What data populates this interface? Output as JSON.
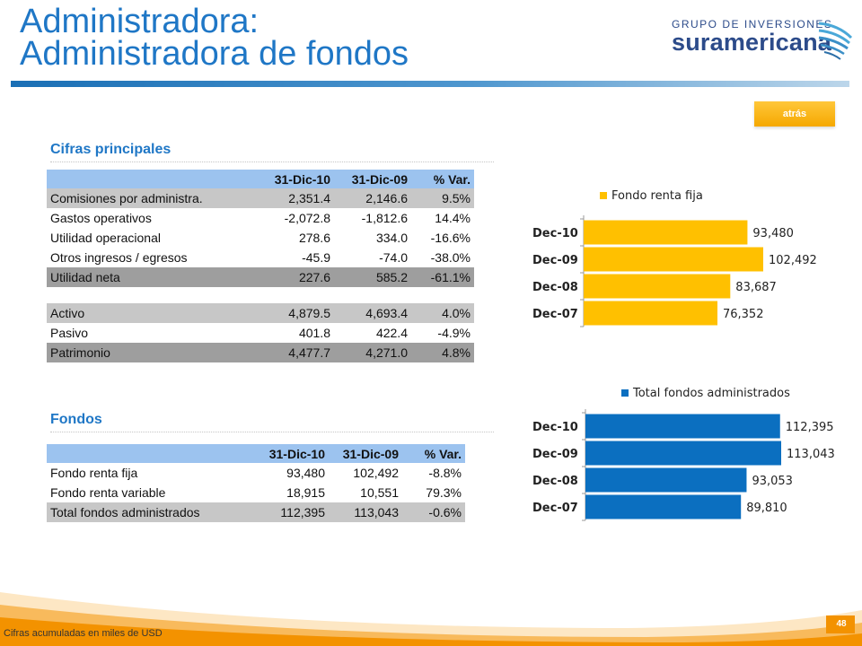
{
  "header": {
    "title_line1": "Administradora:",
    "title_line2": "Administradora de fondos",
    "logo_top": "GRUPO DE INVERSIONES",
    "logo_main": "suramericana"
  },
  "back_button": {
    "label": "atrás"
  },
  "cifras": {
    "section_title": "Cifras principales",
    "columns": [
      "31-Dic-10",
      "31-Dic-09",
      "% Var."
    ],
    "rows": [
      {
        "label": "Comisiones por administra.",
        "v1": "2,351.4",
        "v2": "2,146.6",
        "var": "9.5%",
        "style": "grey"
      },
      {
        "label": "Gastos operativos",
        "v1": "-2,072.8",
        "v2": "-1,812.6",
        "var": "14.4%",
        "style": "white"
      },
      {
        "label": "Utilidad operacional",
        "v1": "278.6",
        "v2": "334.0",
        "var": "-16.6%",
        "style": "white"
      },
      {
        "label": "Otros ingresos / egresos",
        "v1": "-45.9",
        "v2": "-74.0",
        "var": "-38.0%",
        "style": "white"
      },
      {
        "label": "Utilidad neta",
        "v1": "227.6",
        "v2": "585.2",
        "var": "-61.1%",
        "style": "dark"
      }
    ],
    "balance_rows": [
      {
        "label": "Activo",
        "v1": "4,879.5",
        "v2": "4,693.4",
        "var": "4.0%",
        "style": "grey"
      },
      {
        "label": "Pasivo",
        "v1": "401.8",
        "v2": "422.4",
        "var": "-4.9%",
        "style": "white"
      },
      {
        "label": "Patrimonio",
        "v1": "4,477.7",
        "v2": "4,271.0",
        "var": "4.8%",
        "style": "dark"
      }
    ]
  },
  "fondos": {
    "section_title": "Fondos",
    "columns": [
      "31-Dic-10",
      "31-Dic-09",
      "% Var."
    ],
    "rows": [
      {
        "label": "Fondo renta fija",
        "v1": "93,480",
        "v2": "102,492",
        "var": "-8.8%",
        "style": "white"
      },
      {
        "label": "Fondo renta variable",
        "v1": "18,915",
        "v2": "10,551",
        "var": "79.3%",
        "style": "white"
      },
      {
        "label": "Total fondos administrados",
        "v1": "112,395",
        "v2": "113,043",
        "var": "-0.6%",
        "style": "grey"
      }
    ]
  },
  "chart_data": [
    {
      "type": "bar",
      "orientation": "horizontal",
      "categories": [
        "Dec-10",
        "Dec-09",
        "Dec-08",
        "Dec-07"
      ],
      "series": [
        {
          "name": "Fondo renta fija",
          "values": [
            93480,
            102492,
            83687,
            76352
          ],
          "labels": [
            "93,480",
            "102,492",
            "83,687",
            "76,352"
          ]
        }
      ],
      "color": "#ffc000",
      "legend": "top",
      "grid": false
    },
    {
      "type": "bar",
      "orientation": "horizontal",
      "categories": [
        "Dec-10",
        "Dec-09",
        "Dec-08",
        "Dec-07"
      ],
      "series": [
        {
          "name": "Total fondos administrados",
          "values": [
            112395,
            113043,
            93053,
            89810
          ],
          "labels": [
            "112,395",
            "113,043",
            "93,053",
            "89,810"
          ]
        }
      ],
      "color": "#0b6fc0",
      "legend": "top",
      "grid": false
    }
  ],
  "footer": {
    "note": "Cifras acumuladas en miles de USD",
    "page_number": "48"
  }
}
